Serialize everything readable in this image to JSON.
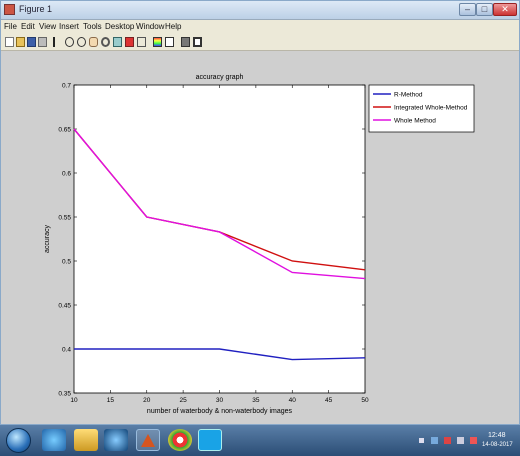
{
  "window": {
    "title": "Figure 1"
  },
  "menu": [
    "File",
    "Edit",
    "View",
    "Insert",
    "Tools",
    "Desktop",
    "Window",
    "Help"
  ],
  "toolbar_icons": [
    "new-figure-icon",
    "open-file-icon",
    "save-icon",
    "print-icon",
    "edit-plot-icon",
    "zoom-in-icon",
    "zoom-out-icon",
    "pan-icon",
    "rotate-icon",
    "data-cursor-icon",
    "brush-icon",
    "link-icon",
    "colorbar-icon",
    "legend-icon",
    "hide-plot-tools-icon",
    "show-plot-tools-icon"
  ],
  "chart_data": {
    "type": "line",
    "title": "accuracy graph",
    "xlabel": "number of waterbody & non-waterbody images",
    "ylabel": "accuracy",
    "xlim": [
      10,
      50
    ],
    "ylim": [
      0.35,
      0.7
    ],
    "xticks": [
      "10",
      "15",
      "20",
      "25",
      "30",
      "35",
      "40",
      "45",
      "50"
    ],
    "yticks": [
      "0.35",
      "0.4",
      "0.45",
      "0.5",
      "0.55",
      "0.6",
      "0.65",
      "0.7"
    ],
    "x": [
      10,
      20,
      30,
      40,
      50
    ],
    "series": [
      {
        "name": "R-Method",
        "color": "#2020c0",
        "values": [
          0.4,
          0.4,
          0.4,
          0.388,
          0.39
        ]
      },
      {
        "name": "Integrated Whole-Method",
        "color": "#d01010",
        "values": [
          0.65,
          0.55,
          0.533,
          0.5,
          0.49
        ]
      },
      {
        "name": "Whole Method",
        "color": "#e010e0",
        "values": [
          0.65,
          0.55,
          0.533,
          0.487,
          0.48
        ]
      }
    ],
    "legend_position": "top-right, outside plot area",
    "grid": false
  },
  "taskbar": {
    "apps": [
      "explorer-icon",
      "ie-icon",
      "folder-icon",
      "media-player-icon",
      "matlab-icon",
      "chrome-icon",
      "skype-icon"
    ],
    "clock_time": "12:48",
    "clock_date": "14-08-2017"
  }
}
